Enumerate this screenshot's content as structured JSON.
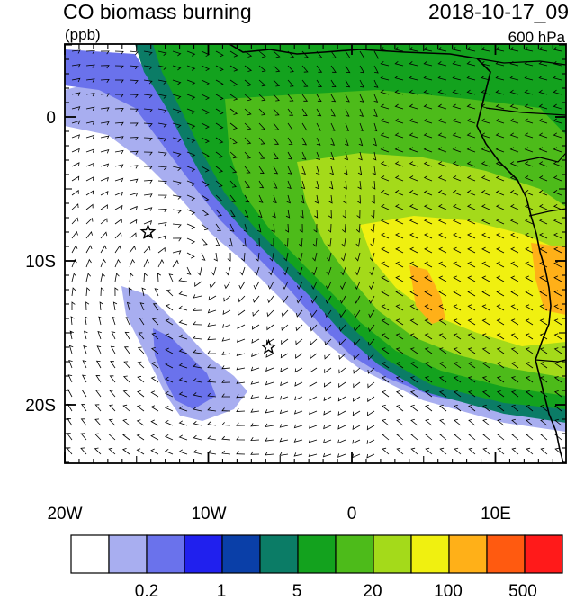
{
  "header": {
    "title": "CO biomass burning",
    "time": "2018-10-17_09",
    "units": "(ppb)",
    "level": "600 hPa"
  },
  "axes": {
    "lat_ticks": [
      "0",
      "10S",
      "20S"
    ],
    "lon_ticks": [
      "20W",
      "10W",
      "0",
      "10E"
    ]
  },
  "colorbar": {
    "colors": [
      "#ffffff",
      "#a8aef0",
      "#6a72ec",
      "#2020ee",
      "#0a3fa8",
      "#0b7c66",
      "#13a21e",
      "#4dbb1a",
      "#a4da1a",
      "#f0f010",
      "#ffb018",
      "#ff5a10",
      "#ff1a1a"
    ],
    "labels": [
      "0.2",
      "1",
      "5",
      "20",
      "100",
      "500"
    ]
  },
  "markers": [
    {
      "label": "star-1",
      "lon": -14.2,
      "lat": -8.0
    },
    {
      "label": "star-2",
      "lon": -5.8,
      "lat": -16.0
    }
  ]
}
